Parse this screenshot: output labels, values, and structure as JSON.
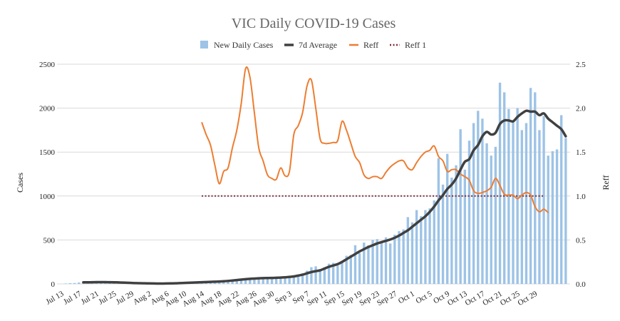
{
  "chart_data": {
    "type": "bar+line",
    "title": "VIC Daily COVID-19 Cases",
    "ylabel": "Cases",
    "y2label": "Reff",
    "ylim": [
      0,
      2500
    ],
    "y2lim": [
      0,
      2.5
    ],
    "yticks": [
      "0",
      "500",
      "1000",
      "1500",
      "2000",
      "2500"
    ],
    "y2ticks": [
      "0.0",
      "0.5",
      "1.0",
      "1.5",
      "2.0",
      "2.5"
    ],
    "xstart": "2021-07-13",
    "xticks": [
      "Jul 13",
      "Jul 17",
      "Jul 21",
      "Jul 25",
      "Jul 29",
      "Aug 2",
      "Aug 6",
      "Aug 10",
      "Aug 14",
      "Aug 18",
      "Aug 22",
      "Aug 26",
      "Aug 30",
      "Sep 3",
      "Sep 7",
      "Sep 11",
      "Sep 15",
      "Sep 19",
      "Sep 23",
      "Sep 27",
      "Oct 1",
      "Oct 5",
      "Oct 9",
      "Oct 13",
      "Oct 17",
      "Oct 21",
      "Oct 25",
      "Oct 29"
    ],
    "grid": true,
    "legend_position": "top",
    "legend": [
      "New Daily Cases",
      "7d Average",
      "Reff",
      "Reff 1"
    ],
    "colors": {
      "bars": "#9dc3e6",
      "avg": "#404040",
      "reff": "#ed7d31",
      "reff1": "#7b2d3e"
    },
    "series": [
      {
        "name": "New Daily Cases",
        "axis": "left",
        "kind": "bar",
        "values": [
          0,
          5,
          8,
          10,
          16,
          18,
          20,
          22,
          24,
          22,
          18,
          15,
          10,
          8,
          8,
          6,
          5,
          5,
          4,
          3,
          3,
          3,
          4,
          5,
          8,
          10,
          12,
          15,
          20,
          21,
          22,
          22,
          24,
          25,
          27,
          29,
          32,
          35,
          45,
          50,
          55,
          58,
          60,
          62,
          64,
          66,
          68,
          70,
          72,
          75,
          80,
          85,
          90,
          95,
          100,
          120,
          150,
          190,
          200,
          170,
          190,
          230,
          240,
          210,
          260,
          320,
          330,
          440,
          350,
          470,
          440,
          500,
          510,
          480,
          530,
          460,
          560,
          600,
          620,
          760,
          700,
          840,
          770,
          840,
          860,
          950,
          1430,
          1130,
          1480,
          1210,
          1350,
          1760,
          1300,
          1630,
          1830,
          1970,
          1880,
          1600,
          1460,
          1560,
          2290,
          2180,
          1990,
          1840,
          2000,
          1750,
          1830,
          2230,
          2180,
          1750,
          1910,
          1460,
          1510,
          1530,
          1920,
          1660
        ]
      },
      {
        "name": "7d Average",
        "axis": "left",
        "kind": "line",
        "values": [
          0,
          0,
          0,
          0,
          0,
          18,
          18,
          19,
          20,
          20,
          20,
          19,
          18,
          17,
          15,
          13,
          11,
          9,
          8,
          7,
          6,
          5,
          4,
          4,
          5,
          6,
          7,
          9,
          11,
          13,
          15,
          17,
          19,
          21,
          23,
          25,
          27,
          30,
          34,
          39,
          44,
          49,
          54,
          58,
          61,
          64,
          66,
          67,
          68,
          70,
          72,
          75,
          80,
          85,
          95,
          105,
          120,
          135,
          145,
          155,
          175,
          195,
          210,
          225,
          250,
          280,
          310,
          340,
          370,
          395,
          420,
          440,
          460,
          475,
          490,
          505,
          525,
          550,
          580,
          610,
          650,
          690,
          730,
          770,
          820,
          880,
          950,
          1010,
          1080,
          1130,
          1200,
          1300,
          1390,
          1420,
          1520,
          1580,
          1680,
          1730,
          1700,
          1720,
          1820,
          1860,
          1860,
          1850,
          1900,
          1940,
          1970,
          1960,
          1960,
          1920,
          1940,
          1880,
          1840,
          1800,
          1760,
          1680
        ]
      },
      {
        "name": "Reff",
        "axis": "right",
        "kind": "line",
        "start_index": 32,
        "values": [
          1.84,
          1.7,
          1.58,
          1.35,
          1.14,
          1.28,
          1.32,
          1.55,
          1.75,
          2.05,
          2.45,
          2.35,
          1.95,
          1.55,
          1.4,
          1.24,
          1.2,
          1.19,
          1.32,
          1.23,
          1.28,
          1.7,
          1.8,
          1.95,
          2.25,
          2.32,
          2.0,
          1.65,
          1.6,
          1.6,
          1.61,
          1.63,
          1.85,
          1.75,
          1.6,
          1.45,
          1.38,
          1.24,
          1.2,
          1.22,
          1.22,
          1.2,
          1.27,
          1.33,
          1.37,
          1.4,
          1.4,
          1.32,
          1.3,
          1.38,
          1.45,
          1.5,
          1.52,
          1.57,
          1.45,
          1.4,
          1.28,
          1.3,
          1.3,
          1.25,
          1.22,
          1.18,
          1.06,
          1.03,
          1.04,
          1.06,
          1.1,
          1.2,
          1.12,
          1.02,
          1.01,
          1.01,
          0.97,
          1.01,
          1.04,
          1.01,
          0.88,
          0.82,
          0.85,
          0.81
        ]
      },
      {
        "name": "Reff 1",
        "axis": "right",
        "kind": "dotted",
        "start_index": 32,
        "end_index": 110,
        "value": 1.0
      }
    ]
  }
}
